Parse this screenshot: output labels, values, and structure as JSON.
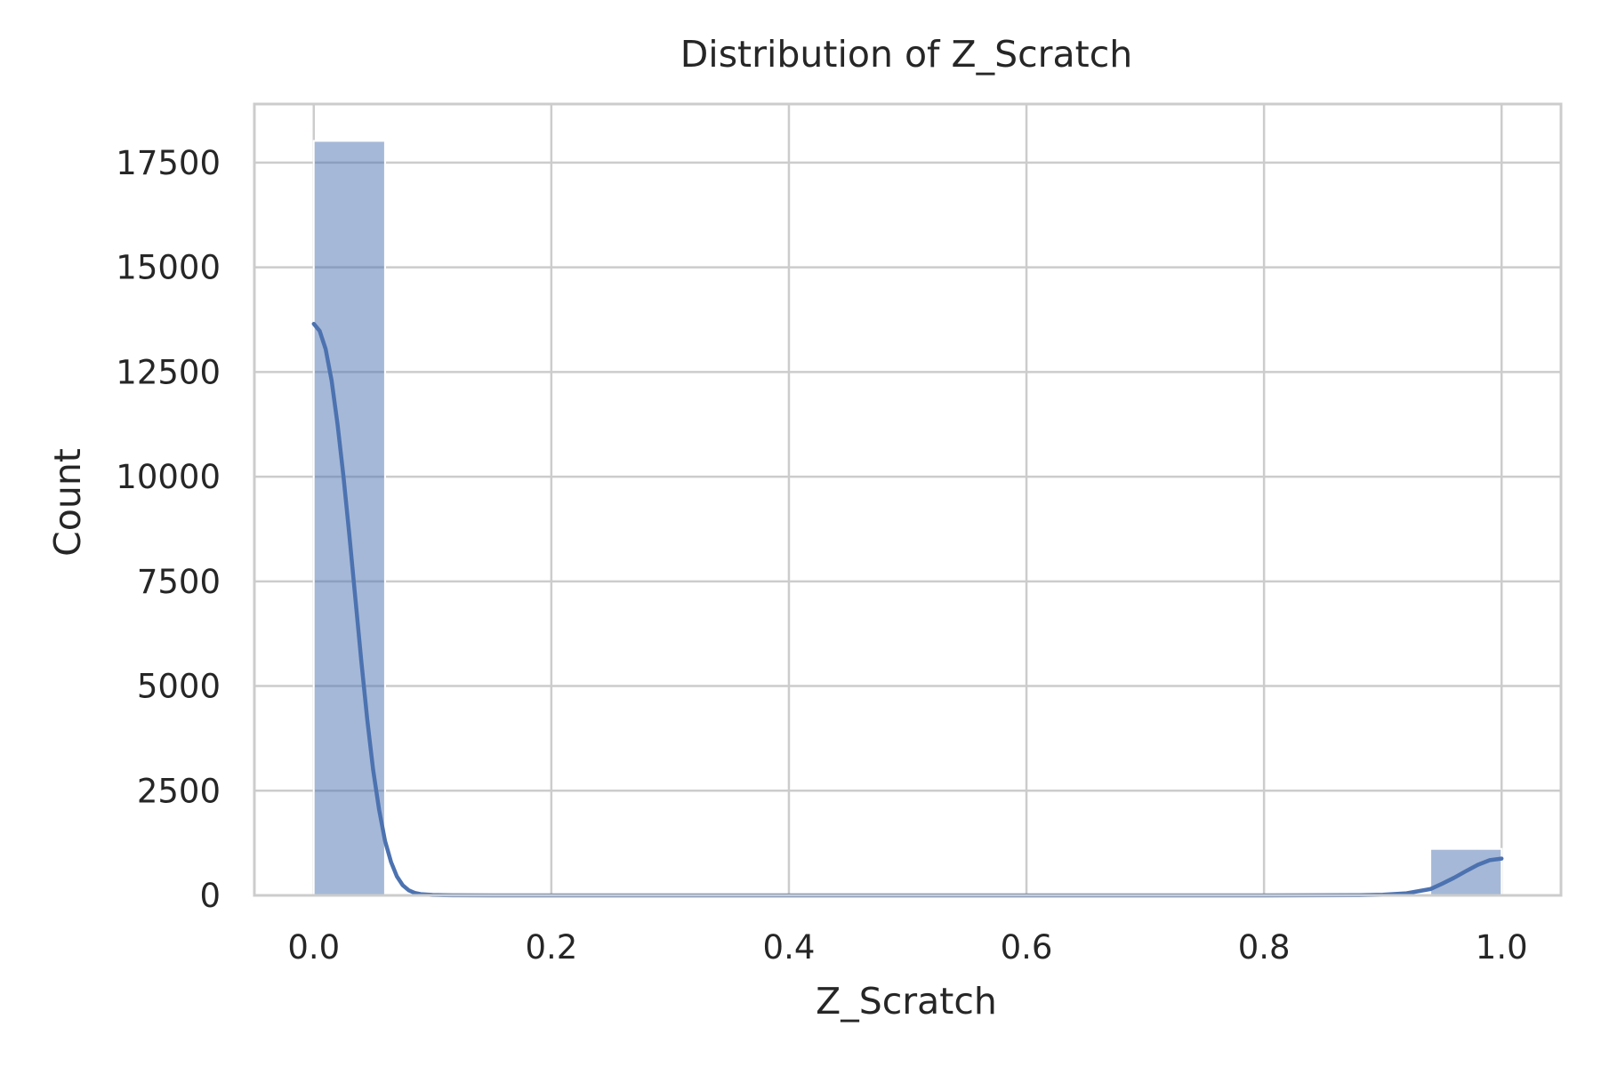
{
  "chart_data": {
    "type": "bar",
    "title": "Distribution of Z_Scratch",
    "xlabel": "Z_Scratch",
    "ylabel": "Count",
    "xlim": [
      -0.05,
      1.05
    ],
    "ylim": [
      0,
      18900
    ],
    "x_ticks": [
      0.0,
      0.2,
      0.4,
      0.6,
      0.8,
      1.0
    ],
    "x_tick_labels": [
      "0.0",
      "0.2",
      "0.4",
      "0.6",
      "0.8",
      "1.0"
    ],
    "y_ticks": [
      0,
      2500,
      5000,
      7500,
      10000,
      12500,
      15000,
      17500
    ],
    "y_tick_labels": [
      "0",
      "2500",
      "5000",
      "7500",
      "10000",
      "12500",
      "15000",
      "17500"
    ],
    "grid": true,
    "legend": "none",
    "bins": [
      {
        "x0": 0.0,
        "x1": 0.06,
        "count": 18020
      },
      {
        "x0": 0.94,
        "x1": 1.0,
        "count": 1110
      }
    ],
    "kde": {
      "x": [
        0.0,
        0.005,
        0.01,
        0.015,
        0.02,
        0.025,
        0.03,
        0.035,
        0.04,
        0.045,
        0.05,
        0.055,
        0.06,
        0.065,
        0.07,
        0.075,
        0.08,
        0.085,
        0.09,
        0.1,
        0.11,
        0.12,
        0.15,
        0.2,
        0.3,
        0.5,
        0.7,
        0.8,
        0.88,
        0.9,
        0.92,
        0.94,
        0.95,
        0.96,
        0.97,
        0.98,
        0.99,
        1.0
      ],
      "y": [
        13650,
        13480,
        13050,
        12300,
        11250,
        10000,
        8600,
        7100,
        5600,
        4200,
        3000,
        2050,
        1300,
        800,
        450,
        240,
        120,
        60,
        30,
        10,
        5,
        2,
        0,
        0,
        0,
        0,
        0,
        0,
        5,
        15,
        50,
        150,
        280,
        420,
        580,
        730,
        840,
        880
      ]
    },
    "colors": {
      "bar": "#4c72b0",
      "line": "#4c72b0",
      "grid": "#cccccc",
      "frame": "#cccccc",
      "text": "#262626"
    }
  }
}
